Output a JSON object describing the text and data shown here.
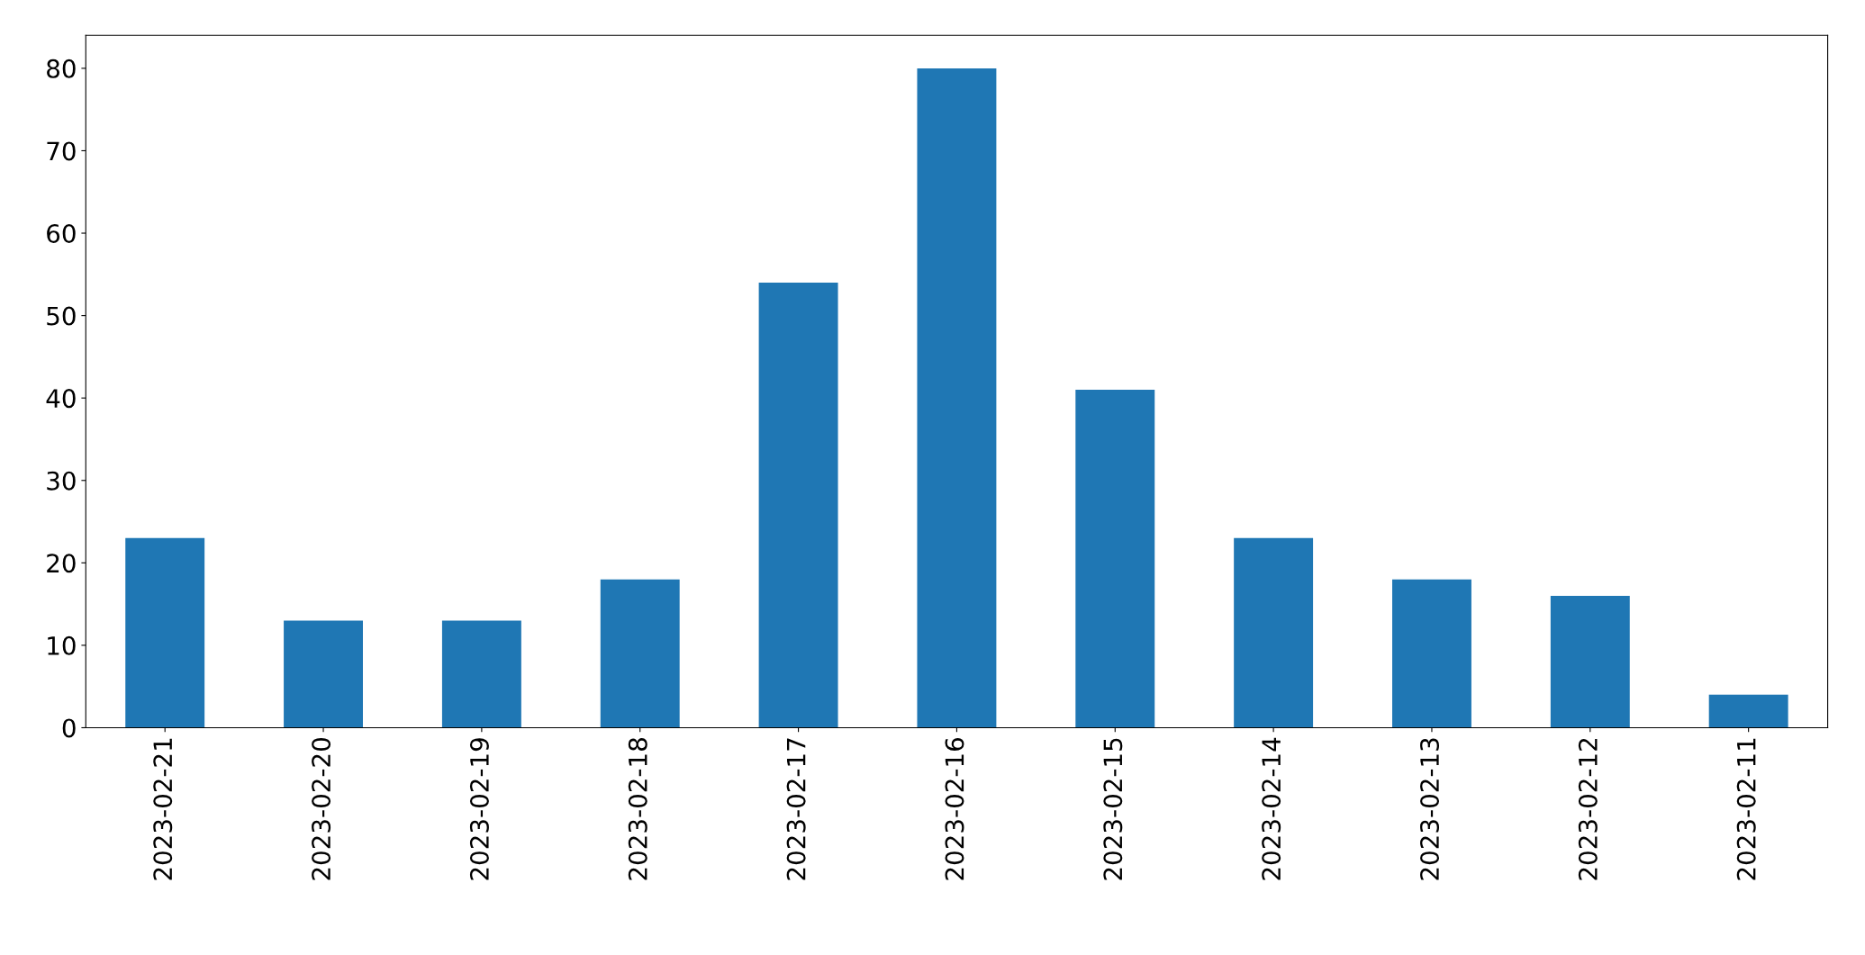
{
  "chart_data": {
    "type": "bar",
    "categories": [
      "2023-02-21",
      "2023-02-20",
      "2023-02-19",
      "2023-02-18",
      "2023-02-17",
      "2023-02-16",
      "2023-02-15",
      "2023-02-14",
      "2023-02-13",
      "2023-02-12",
      "2023-02-11"
    ],
    "values": [
      23,
      13,
      13,
      18,
      54,
      80,
      41,
      23,
      18,
      16,
      4
    ],
    "color": "#1f77b4",
    "ylim": [
      0,
      84
    ],
    "yticks": [
      0,
      10,
      20,
      30,
      40,
      50,
      60,
      70,
      80
    ],
    "grid": false,
    "legend": false
  }
}
